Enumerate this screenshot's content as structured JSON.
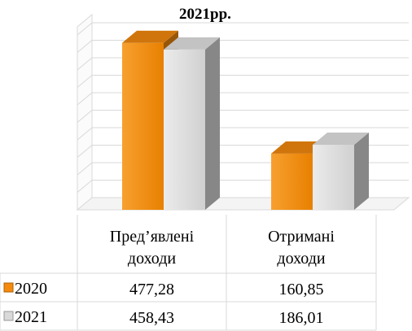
{
  "chart_data": {
    "type": "bar",
    "title": "2021рр.",
    "categories": [
      "Пред’явлені доходи",
      "Отримані доходи"
    ],
    "category_lines": [
      [
        "Пред’явлені",
        "доходи"
      ],
      [
        "Отримані",
        "доходи"
      ]
    ],
    "series": [
      {
        "name": "2020",
        "values": [
          477.28,
          160.85
        ],
        "labels": [
          "477,28",
          "160,85"
        ],
        "color": "#F58A0E"
      },
      {
        "name": "2021",
        "values": [
          458.43,
          186.01
        ],
        "labels": [
          "458,43",
          "186,01"
        ],
        "color": "#D9D9D9"
      }
    ],
    "ylim": [
      0,
      500
    ],
    "grid": true,
    "legend": "data-table",
    "style": "3d-clustered-column-with-data-table"
  }
}
